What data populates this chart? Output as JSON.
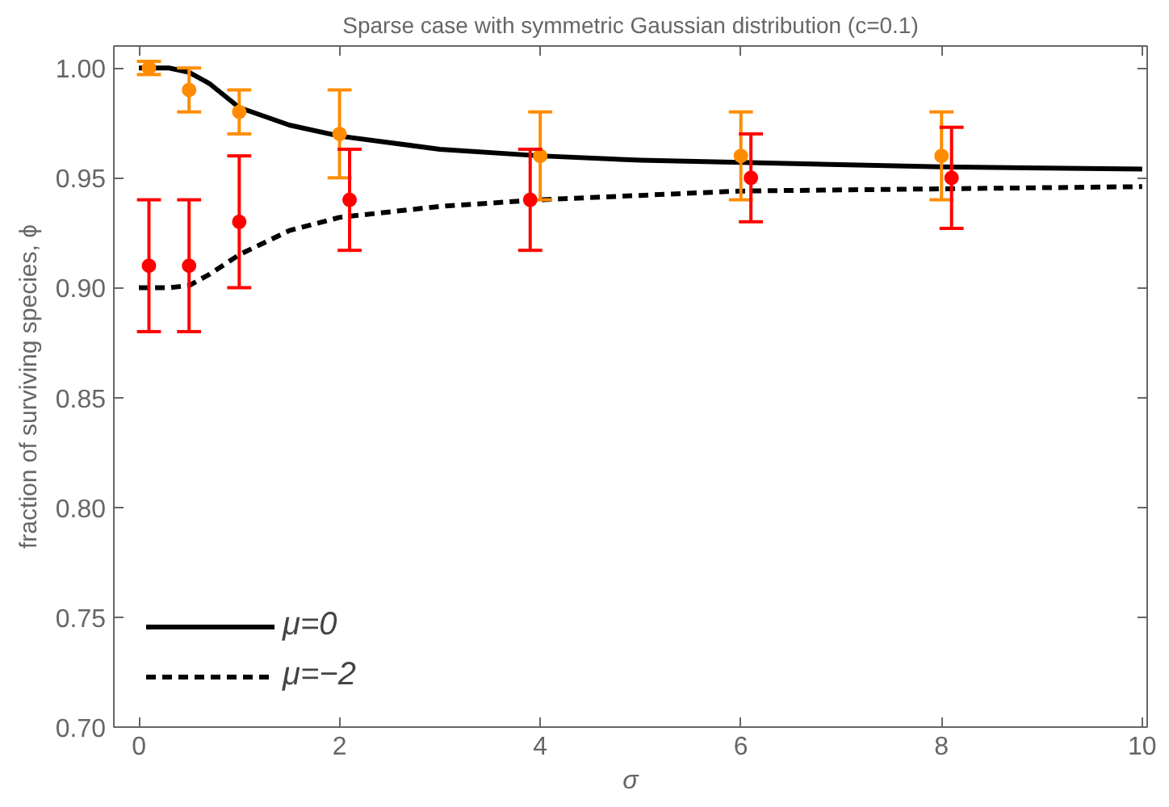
{
  "chart_data": {
    "type": "line",
    "title": "Sparse case with symmetric Gaussian distribution (c=0.1)",
    "xlabel": "σ",
    "ylabel": "fraction of surviving species, ϕ",
    "xlim": [
      -0.25,
      10.05
    ],
    "ylim": [
      0.7,
      1.01
    ],
    "xticks": [
      0,
      2,
      4,
      6,
      8,
      10
    ],
    "yticks": [
      {
        "value": 0.7,
        "label": "0.70"
      },
      {
        "value": 0.75,
        "label": "0.75"
      },
      {
        "value": 0.8,
        "label": "0.80"
      },
      {
        "value": 0.85,
        "label": "0.85"
      },
      {
        "value": 0.9,
        "label": "0.90"
      },
      {
        "value": 0.95,
        "label": "0.95"
      },
      {
        "value": 1.0,
        "label": "1.00"
      }
    ],
    "grid": false,
    "legend": "bottom left",
    "series": [
      {
        "name": "μ=0",
        "color": "#000000",
        "line_style": "solid",
        "marker": "none",
        "x": [
          0,
          0.3,
          0.5,
          0.7,
          1,
          1.5,
          2,
          3,
          4,
          5,
          6,
          8,
          10
        ],
        "values": [
          1.0,
          1.0,
          0.998,
          0.993,
          0.982,
          0.974,
          0.969,
          0.963,
          0.96,
          0.958,
          0.957,
          0.955,
          0.954
        ]
      },
      {
        "name": "μ=−2",
        "color": "#000000",
        "line_style": "dashed",
        "marker": "none",
        "x": [
          0,
          0.3,
          0.5,
          0.7,
          1,
          1.5,
          2,
          3,
          4,
          5,
          6,
          8,
          10
        ],
        "values": [
          0.9,
          0.9,
          0.901,
          0.906,
          0.915,
          0.926,
          0.932,
          0.937,
          0.94,
          0.942,
          0.944,
          0.945,
          0.946
        ]
      },
      {
        "type": "scatter",
        "color": "#ff8c00",
        "marker": "circle",
        "x": [
          0.1,
          0.5,
          1.0,
          2.0,
          4.0,
          6.0,
          8.0
        ],
        "values": [
          1.0,
          0.99,
          0.98,
          0.97,
          0.96,
          0.96,
          0.96
        ],
        "errors": [
          0.003,
          0.01,
          0.01,
          0.02,
          0.02,
          0.02,
          0.02
        ]
      },
      {
        "type": "scatter",
        "color": "#ff0000",
        "marker": "circle",
        "x": [
          0.1,
          0.5,
          1.0,
          2.1,
          3.9,
          6.1,
          8.1
        ],
        "values": [
          0.91,
          0.91,
          0.93,
          0.94,
          0.94,
          0.95,
          0.95
        ],
        "errors": [
          0.03,
          0.03,
          0.03,
          [
            0.917,
            0.963
          ],
          [
            0.917,
            0.963
          ],
          [
            0.93,
            0.97
          ],
          [
            0.927,
            0.973
          ]
        ]
      }
    ]
  }
}
